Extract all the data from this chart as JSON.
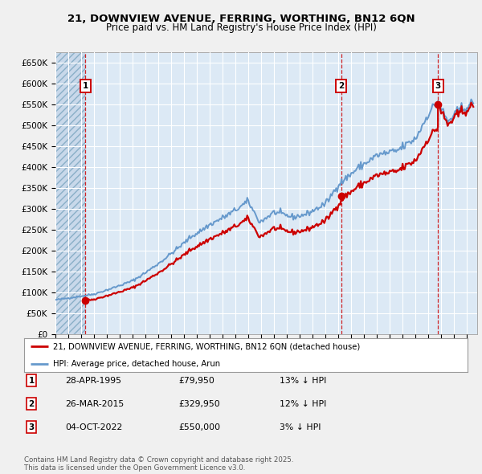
{
  "title_line1": "21, DOWNVIEW AVENUE, FERRING, WORTHING, BN12 6QN",
  "title_line2": "Price paid vs. HM Land Registry's House Price Index (HPI)",
  "legend_red": "21, DOWNVIEW AVENUE, FERRING, WORTHING, BN12 6QN (detached house)",
  "legend_blue": "HPI: Average price, detached house, Arun",
  "transactions": [
    {
      "num": 1,
      "date": "28-APR-1995",
      "year": 1995.32,
      "price": 79950,
      "pct": "13%",
      "dir": "↓"
    },
    {
      "num": 2,
      "date": "26-MAR-2015",
      "year": 2015.23,
      "price": 329950,
      "pct": "12%",
      "dir": "↓"
    },
    {
      "num": 3,
      "date": "04-OCT-2022",
      "year": 2022.75,
      "price": 550000,
      "pct": "3%",
      "dir": "↓"
    }
  ],
  "footer": "Contains HM Land Registry data © Crown copyright and database right 2025.\nThis data is licensed under the Open Government Licence v3.0.",
  "fig_bg": "#f0f0f0",
  "plot_bg": "#dce9f5",
  "grid_color": "#ffffff",
  "red_color": "#cc0000",
  "blue_color": "#6699cc",
  "ylim_max": 675000,
  "ylim_min": 0,
  "xmin": 1993.0,
  "xmax": 2025.8,
  "t1_year": 1995.32,
  "t2_year": 2015.23,
  "t3_year": 2022.75
}
